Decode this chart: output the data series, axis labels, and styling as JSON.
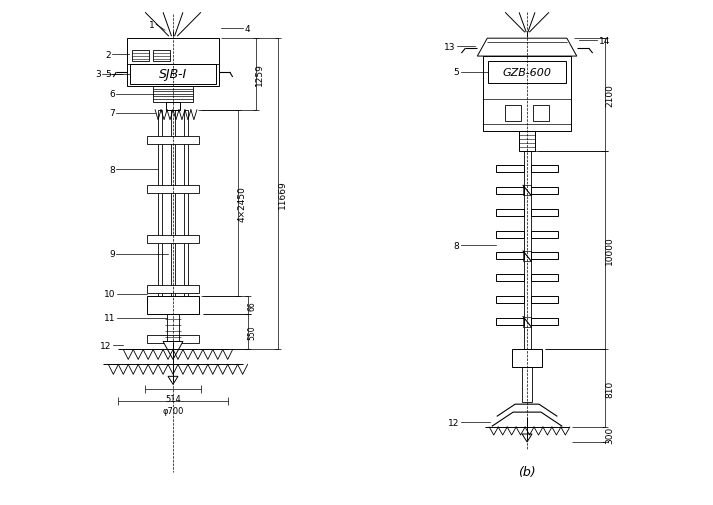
{
  "fig_width": 7.13,
  "fig_height": 5.06,
  "dpi": 100,
  "bg_color": "#ffffff",
  "line_color": "#000000",
  "left_label": "SJB-Ⅰ",
  "right_label": "GZB-600",
  "right_sub_label": "(b)",
  "dims_left": {
    "d1259": "1259",
    "d11669": "11669",
    "d4x2450": "4×2450",
    "d66": "66",
    "d550": "550",
    "d514": "514",
    "dphi700": "φ700"
  },
  "dims_right": {
    "d2100": "2100",
    "d10000": "10000",
    "d810": "810",
    "d300": "300"
  }
}
